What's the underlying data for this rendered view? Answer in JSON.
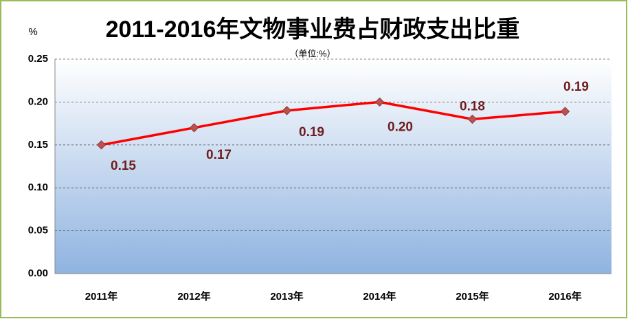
{
  "chart_data": {
    "type": "line",
    "title": "2011-2016年文物事业费占财政支出比重",
    "subtitle": "（单位:%）",
    "y_axis_label": "%",
    "categories": [
      "2011年",
      "2012年",
      "2013年",
      "2014年",
      "2015年",
      "2016年"
    ],
    "series": [
      {
        "name": "文物事业费占财政支出比重",
        "color": "#ff0000",
        "values": [
          0.15,
          0.17,
          0.19,
          0.2,
          0.18,
          0.189
        ],
        "value_labels": [
          "0.15",
          "0.17",
          "0.19",
          "0.20",
          "0.18",
          "0.19"
        ]
      }
    ],
    "ylim": [
      0,
      0.25
    ],
    "yticks": [
      {
        "value": 0,
        "label": "0.00"
      },
      0.05,
      {
        "value": 0.1,
        "label": "0.10"
      },
      0.15,
      {
        "value": 0.2,
        "label": "0.20"
      },
      0.25
    ],
    "grid": true
  }
}
